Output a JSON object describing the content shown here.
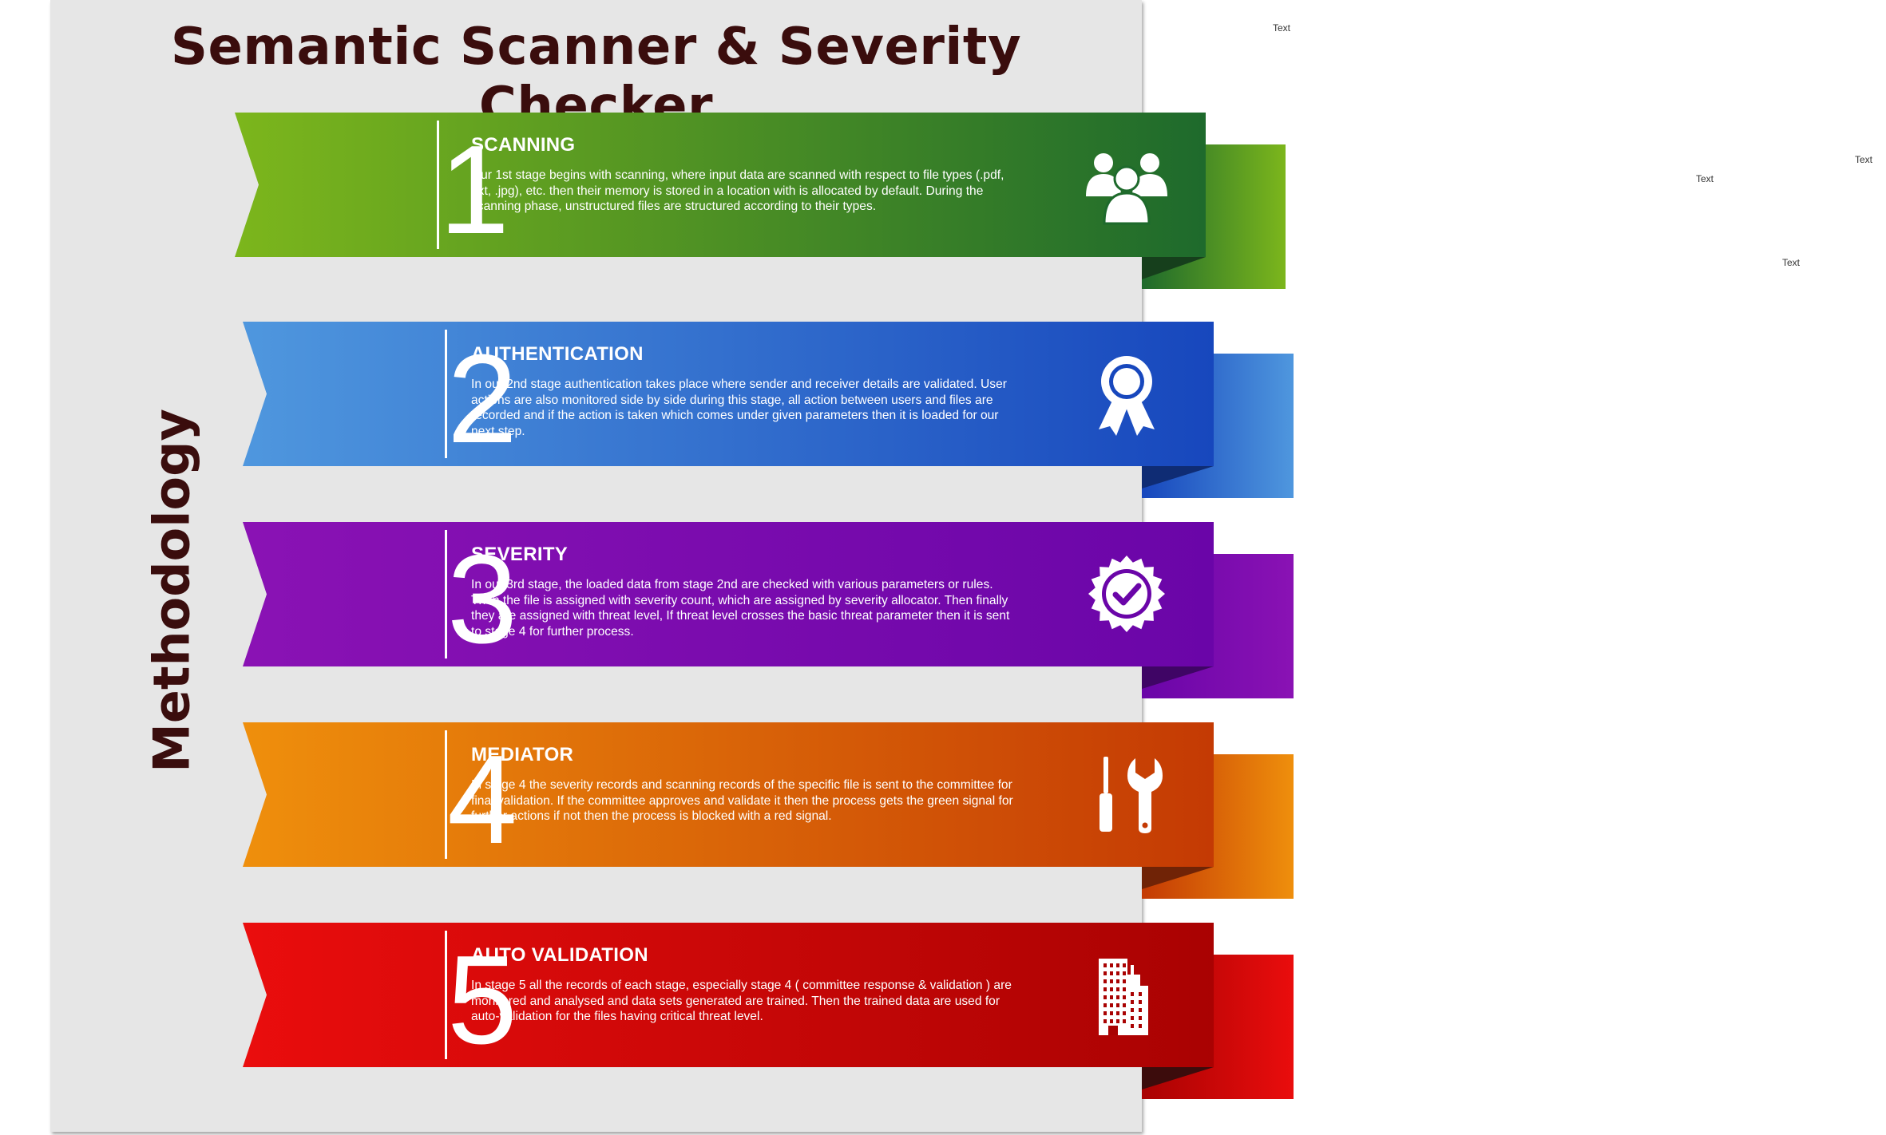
{
  "title": "Semantic Scanner & Severity Checker",
  "side_label": "Methodology",
  "stages": [
    {
      "number": "1",
      "title": "SCANNING",
      "description": "Our 1st stage begins with scanning, where input data are scanned with respect to file types (.pdf, .txt, .jpg), etc. then their memory is stored in a location with is allocated by default. During the scanning phase, unstructured files are structured according to their types.",
      "icon": "users-icon",
      "colors": {
        "light": "#7cb61c",
        "dark": "#1e6a2c",
        "fold": "#163f1c"
      }
    },
    {
      "number": "2",
      "title": "AUTHENTICATION",
      "description": "In our 2nd stage authentication takes place where sender and receiver details are validated. User actions are also monitored side by side during this stage, all action between users and files are recorded and if the action is taken which comes under given parameters then it is loaded for our next step.",
      "icon": "award-ribbon-icon",
      "colors": {
        "light": "#4f97de",
        "dark": "#1747bd",
        "fold": "#0f2c74"
      }
    },
    {
      "number": "3",
      "title": "SEVERITY",
      "description": "In our 3rd stage, the loaded data from stage 2nd are checked with various parameters or rules. Then the file is assigned with severity count, which are assigned by severity allocator. Then finally they are assigned with threat level, If threat level crosses the basic threat parameter then it is sent to stage 4 for further process.",
      "icon": "check-badge-icon",
      "colors": {
        "light": "#8a12b4",
        "dark": "#6a05a8",
        "fold": "#3f0565"
      }
    },
    {
      "number": "4",
      "title": "MEDIATOR",
      "description": "In stage 4 the severity records and scanning records of the specific file is sent to the committee for final validation. If the committee approves and validate it then the process gets the green signal for further actions if not then the process is blocked with a red signal.",
      "icon": "tools-icon",
      "colors": {
        "light": "#ef8f0c",
        "dark": "#c43a04",
        "fold": "#702306"
      }
    },
    {
      "number": "5",
      "title": "AUTO VALIDATION",
      "description": "In stage 5 all the records of each stage, especially stage 4 ( committee response & validation ) are monitored and analysed and data sets generated are trained. Then the trained data are used for auto-validation for the files having critical threat level.",
      "icon": "building-icon",
      "colors": {
        "light": "#ea0d0d",
        "dark": "#a90202",
        "fold": "#3c0c0c"
      }
    }
  ],
  "stray_labels": [
    "Text",
    "Text",
    "Text",
    "Text"
  ]
}
